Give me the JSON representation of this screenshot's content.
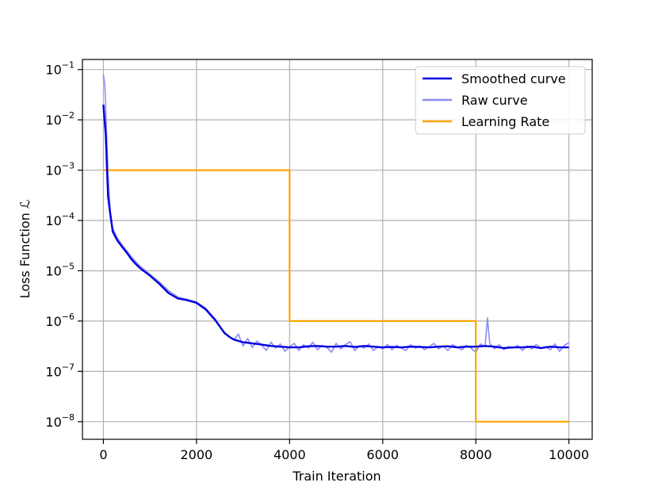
{
  "chart_data": {
    "type": "line",
    "xlabel": "Train Iteration",
    "ylabel": "Loss Function ℒ",
    "xlim": [
      -450,
      10500
    ],
    "ylim_log10": [
      -8.35,
      -0.8
    ],
    "yscale": "log",
    "grid": true,
    "legend_position": "top-right",
    "x_ticks": [
      0,
      2000,
      4000,
      6000,
      8000,
      10000
    ],
    "x_tick_labels": [
      "0",
      "2000",
      "4000",
      "6000",
      "8000",
      "10000"
    ],
    "y_ticks_log10": [
      -8,
      -7,
      -6,
      -5,
      -4,
      -3,
      -2,
      -1
    ],
    "y_tick_base": "10",
    "y_tick_exponents": [
      "−8",
      "−7",
      "−6",
      "−5",
      "−4",
      "−3",
      "−2",
      "−1"
    ],
    "series": [
      {
        "name": "Smoothed curve",
        "color": "#0000e0",
        "x": [
          0,
          50,
          100,
          150,
          200,
          300,
          400,
          500,
          600,
          700,
          800,
          1000,
          1200,
          1400,
          1600,
          1800,
          2000,
          2200,
          2400,
          2600,
          2700,
          2800,
          3000,
          3200,
          3400,
          3600,
          3800,
          4000,
          4200,
          4400,
          4600,
          4800,
          5000,
          5200,
          5400,
          5600,
          5800,
          6000,
          6200,
          6400,
          6600,
          6800,
          7000,
          7200,
          7400,
          7600,
          7800,
          8000,
          8200,
          8400,
          8600,
          8800,
          9000,
          9200,
          9400,
          9600,
          9800,
          10000
        ],
        "y": [
          0.02,
          0.005,
          0.0003,
          0.00013,
          6e-05,
          4e-05,
          3e-05,
          2.3e-05,
          1.7e-05,
          1.35e-05,
          1.1e-05,
          8e-06,
          5.5e-06,
          3.6e-06,
          2.8e-06,
          2.6e-06,
          2.3e-06,
          1.7e-06,
          1.05e-06,
          5.8e-07,
          4.9e-07,
          4.3e-07,
          3.8e-07,
          3.6e-07,
          3.4e-07,
          3.2e-07,
          3.1e-07,
          3e-07,
          3e-07,
          3.15e-07,
          3.2e-07,
          3.1e-07,
          3.1e-07,
          3.2e-07,
          3.05e-07,
          3.2e-07,
          3.1e-07,
          3e-07,
          3.05e-07,
          3e-07,
          3.1e-07,
          3.05e-07,
          3e-07,
          3.1e-07,
          3.15e-07,
          3e-07,
          3.1e-07,
          3.1e-07,
          3.2e-07,
          3.1e-07,
          2.9e-07,
          3e-07,
          3e-07,
          3.1e-07,
          2.9e-07,
          3.1e-07,
          3e-07,
          3e-07
        ]
      },
      {
        "name": "Raw curve",
        "color": "#8c8cf2",
        "x": [
          0,
          30,
          60,
          100,
          150,
          200,
          300,
          400,
          500,
          600,
          700,
          800,
          1000,
          1200,
          1400,
          1600,
          1800,
          2000,
          2100,
          2200,
          2300,
          2400,
          2500,
          2600,
          2700,
          2800,
          2900,
          3000,
          3100,
          3200,
          3300,
          3400,
          3500,
          3600,
          3700,
          3800,
          3900,
          4000,
          4100,
          4200,
          4300,
          4400,
          4500,
          4600,
          4700,
          4800,
          4900,
          5000,
          5100,
          5200,
          5300,
          5400,
          5500,
          5600,
          5700,
          5800,
          5900,
          6000,
          6100,
          6200,
          6300,
          6400,
          6500,
          6600,
          6700,
          6800,
          6900,
          7000,
          7100,
          7200,
          7300,
          7400,
          7500,
          7600,
          7700,
          7800,
          7900,
          8000,
          8100,
          8200,
          8250,
          8300,
          8400,
          8500,
          8600,
          8700,
          8800,
          8900,
          9000,
          9100,
          9200,
          9300,
          9400,
          9500,
          9600,
          9700,
          9800,
          9900,
          10000
        ],
        "y": [
          0.08,
          0.05,
          0.01,
          0.0008,
          0.00015,
          7e-05,
          4.5e-05,
          3.3e-05,
          2.5e-05,
          1.9e-05,
          1.5e-05,
          1.2e-05,
          8.5e-06,
          6e-06,
          4e-06,
          3e-06,
          2.7e-06,
          2.4e-06,
          2.1e-06,
          1.8e-06,
          1.4e-06,
          1.1e-06,
          8e-07,
          6e-07,
          5e-07,
          4.2e-07,
          5.5e-07,
          3.2e-07,
          4.5e-07,
          3e-07,
          4e-07,
          3.3e-07,
          2.6e-07,
          3.8e-07,
          2.9e-07,
          3.5e-07,
          2.5e-07,
          3.1e-07,
          3.6e-07,
          2.6e-07,
          3.4e-07,
          2.9e-07,
          3.8e-07,
          2.7e-07,
          3.3e-07,
          3e-07,
          2.4e-07,
          3.6e-07,
          2.8e-07,
          3.4e-07,
          3.9e-07,
          2.6e-07,
          3.2e-07,
          2.9e-07,
          3.5e-07,
          2.6e-07,
          3.1e-07,
          2.8e-07,
          3.4e-07,
          2.7e-07,
          3.3e-07,
          2.9e-07,
          2.6e-07,
          3.4e-07,
          2.9e-07,
          3.2e-07,
          2.7e-07,
          3.1e-07,
          3.6e-07,
          2.8e-07,
          3.2e-07,
          2.6e-07,
          3.4e-07,
          3e-07,
          2.7e-07,
          3.3e-07,
          2.9e-07,
          2.4e-07,
          3.5e-07,
          3.1e-07,
          1.15e-06,
          3.6e-07,
          2.8e-07,
          3.4e-07,
          2.7e-07,
          3.1e-07,
          2.9e-07,
          3.3e-07,
          2.6e-07,
          3.2e-07,
          2.8e-07,
          3.4e-07,
          2.9e-07,
          3.1e-07,
          2.7e-07,
          3.5e-07,
          2.5e-07,
          3.3e-07,
          3.7e-07
        ]
      },
      {
        "name": "Learning Rate",
        "color": "#ffa500",
        "x": [
          0,
          4000,
          4000,
          8000,
          8000,
          10000
        ],
        "y": [
          0.001,
          0.001,
          1e-06,
          1e-06,
          1e-08,
          1e-08
        ]
      }
    ]
  }
}
